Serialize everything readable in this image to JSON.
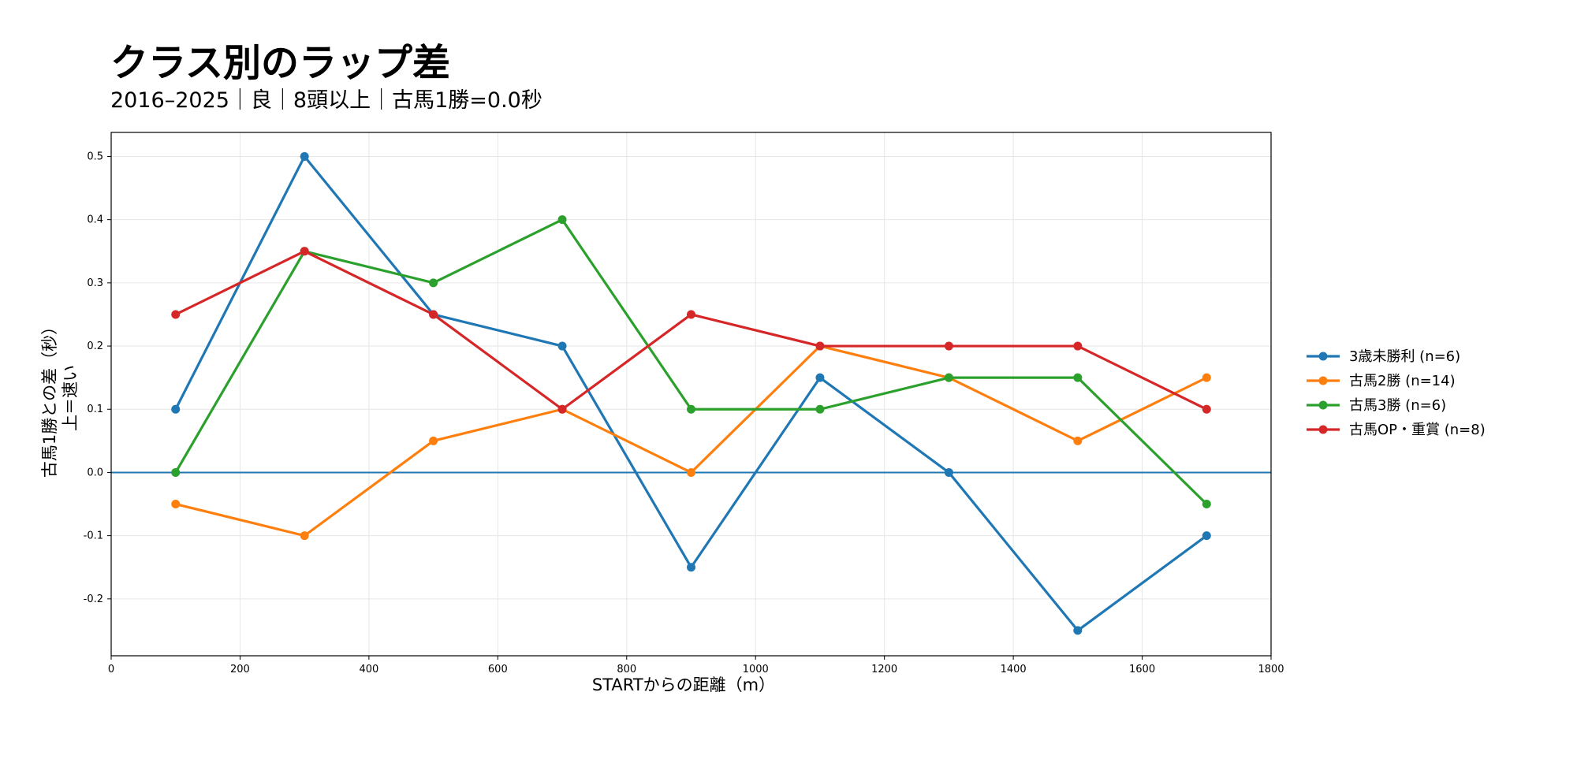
{
  "chart_data": {
    "type": "line",
    "title": "クラス別のラップ差",
    "subtitle": "2016–2025｜良｜8頭以上｜古馬1勝=0.0秒",
    "xlabel": "STARTからの距離（m）",
    "ylabel_line1": "古馬1勝との差（秒）",
    "ylabel_line2": "上＝速い",
    "xlim": [
      0,
      1800
    ],
    "ylim": [
      -0.29,
      0.538
    ],
    "xticks": [
      0,
      200,
      400,
      600,
      800,
      1000,
      1200,
      1400,
      1600,
      1800
    ],
    "yticks": [
      -0.2,
      -0.1,
      0.0,
      0.1,
      0.2,
      0.3,
      0.4,
      0.5
    ],
    "ytick_labels": [
      "-0.2",
      "-0.1",
      "0.0",
      "0.1",
      "0.2",
      "0.3",
      "0.4",
      "0.5"
    ],
    "grid": true,
    "legend_position": "right",
    "baseline": {
      "y": 0.0,
      "color": "#1f77b4"
    },
    "x": [
      100,
      300,
      500,
      700,
      900,
      1100,
      1300,
      1500,
      1700
    ],
    "series": [
      {
        "name": "3歳未勝利 (n=6)",
        "color": "#1f77b4",
        "values": [
          0.1,
          0.5,
          0.25,
          0.2,
          -0.15,
          0.15,
          0.0,
          -0.25,
          -0.1
        ]
      },
      {
        "name": "古馬2勝 (n=14)",
        "color": "#ff7f0e",
        "values": [
          -0.05,
          -0.1,
          0.05,
          0.1,
          0.0,
          0.2,
          0.15,
          0.05,
          0.15
        ]
      },
      {
        "name": "古馬3勝 (n=6)",
        "color": "#2ca02c",
        "values": [
          0.0,
          0.35,
          0.3,
          0.4,
          0.1,
          0.1,
          0.15,
          0.15,
          -0.05
        ]
      },
      {
        "name": "古馬OP・重賞 (n=8)",
        "color": "#d62728",
        "values": [
          0.25,
          0.35,
          0.25,
          0.1,
          0.25,
          0.2,
          0.2,
          0.2,
          0.1
        ]
      }
    ]
  }
}
